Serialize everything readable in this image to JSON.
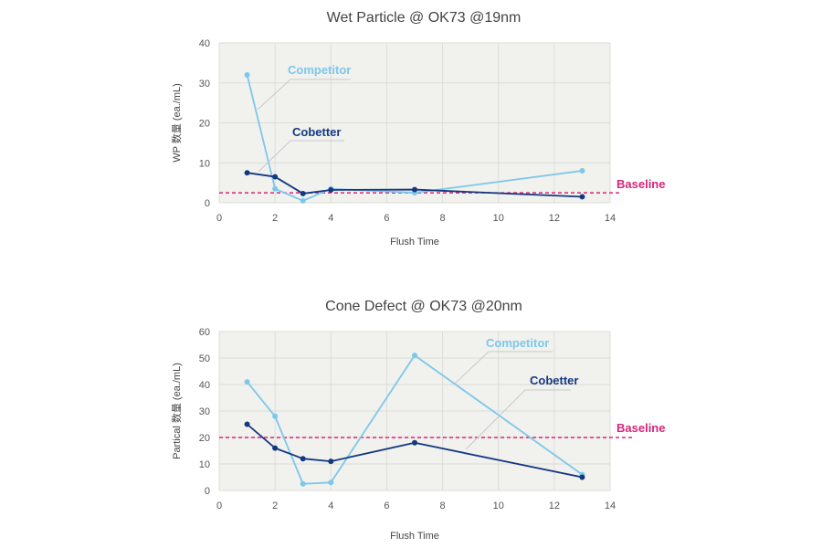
{
  "chart_data": [
    {
      "type": "line",
      "title": "Wet Particle @ OK73 @19nm",
      "xlabel": "Flush Time",
      "ylabel": "WP 数量 (ea./mL)",
      "xlim": [
        0,
        14
      ],
      "ylim": [
        0,
        40
      ],
      "x_ticks": [
        "0",
        "2",
        "4",
        "6",
        "8",
        "10",
        "12",
        "14"
      ],
      "y_ticks": [
        "0",
        "10",
        "20",
        "30",
        "40"
      ],
      "grid": true,
      "series": [
        {
          "name": "Competitor",
          "color": "#7cc8ea",
          "x": [
            1,
            2,
            3,
            4,
            7,
            13
          ],
          "y": [
            32,
            3.5,
            0.5,
            3.5,
            2.5,
            8
          ]
        },
        {
          "name": "Cobetter",
          "color": "#14387f",
          "x": [
            1,
            2,
            3,
            4,
            7,
            13
          ],
          "y": [
            7.5,
            6.5,
            2.3,
            3.2,
            3.3,
            1.5
          ]
        }
      ],
      "baseline": {
        "label": "Baseline",
        "value": 2.5,
        "color": "#d6267a"
      }
    },
    {
      "type": "line",
      "title": "Cone Defect @ OK73 @20nm",
      "xlabel": "Flush Time",
      "ylabel": "Partical 数量 (ea./mL)",
      "xlim": [
        0,
        14
      ],
      "ylim": [
        0,
        60
      ],
      "x_ticks": [
        "0",
        "2",
        "4",
        "6",
        "8",
        "10",
        "12",
        "14"
      ],
      "y_ticks": [
        "0",
        "10",
        "20",
        "30",
        "40",
        "50",
        "60"
      ],
      "grid": true,
      "series": [
        {
          "name": "Competitor",
          "color": "#7cc8ea",
          "x": [
            1,
            2,
            3,
            4,
            7,
            13
          ],
          "y": [
            41,
            28,
            2.5,
            3,
            51,
            6
          ]
        },
        {
          "name": "Cobetter",
          "color": "#14387f",
          "x": [
            1,
            2,
            3,
            4,
            7,
            13
          ],
          "y": [
            25,
            16,
            12,
            11,
            18,
            5
          ]
        }
      ],
      "baseline": {
        "label": "Baseline",
        "value": 20,
        "color": "#d6267a"
      }
    }
  ]
}
